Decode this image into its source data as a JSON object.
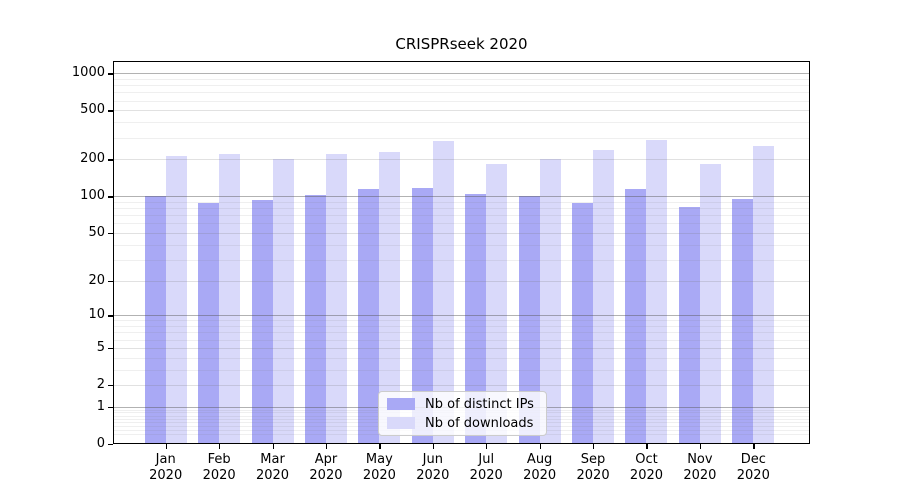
{
  "chart_data": {
    "type": "bar",
    "title": "CRISPRseek 2020",
    "categories": [
      "Jan",
      "Feb",
      "Mar",
      "Apr",
      "May",
      "Jun",
      "Jul",
      "Aug",
      "Sep",
      "Oct",
      "Nov",
      "Dec"
    ],
    "x_tick_year": "2020",
    "series": [
      {
        "name": "Nb of distinct IPs",
        "color": "#a9a9f5",
        "values": [
          100,
          88,
          93,
          103,
          115,
          118,
          104,
          100,
          88,
          116,
          82,
          95
        ]
      },
      {
        "name": "Nb of downloads",
        "color": "#d9d9fa",
        "values": [
          214,
          220,
          200,
          222,
          229,
          283,
          183,
          203,
          238,
          288,
          185,
          256
        ]
      }
    ],
    "yscale": "log1p",
    "yticks": [
      0,
      1,
      2,
      5,
      10,
      20,
      50,
      100,
      200,
      500,
      1000
    ],
    "ylim": [
      0,
      1259
    ],
    "grid": true,
    "legend_position": "lower center"
  }
}
